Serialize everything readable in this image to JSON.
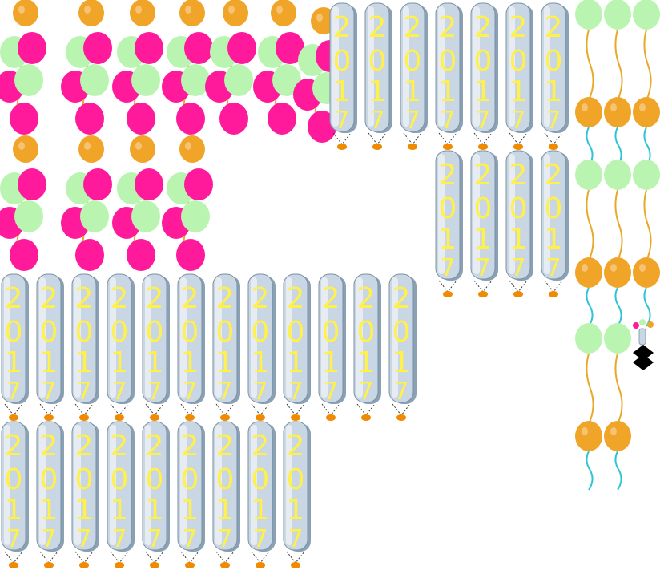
{
  "sheet": {
    "background": "#ffffff",
    "sprite_label": "2017"
  },
  "colors": {
    "balloon_pink": "#ff1a9c",
    "balloon_green": "#b9f5b1",
    "balloon_orange": "#f0a428",
    "balloon_orange_dark": "#d98a14",
    "string_gold": "#e8a92a",
    "string_cyan": "#2ec4d6",
    "number_silver": "#c9d6e3",
    "number_silver_dark": "#8aa0b4",
    "number_glow_yellow": "#fff04a",
    "weight_orange": "#f08a00"
  },
  "sprite_groups": [
    {
      "name": "balloon-cluster-group-top",
      "count": 7
    },
    {
      "name": "balloon-cluster-group-mid",
      "count": 4
    },
    {
      "name": "number-2017-row-1",
      "count": 7
    },
    {
      "name": "number-2017-row-2",
      "count": 4
    },
    {
      "name": "number-2017-row-3",
      "count": 12
    },
    {
      "name": "number-2017-row-4",
      "count": 9
    },
    {
      "name": "hanging-balloon-strands",
      "count": 3
    },
    {
      "name": "small-icon",
      "count": 1
    }
  ]
}
